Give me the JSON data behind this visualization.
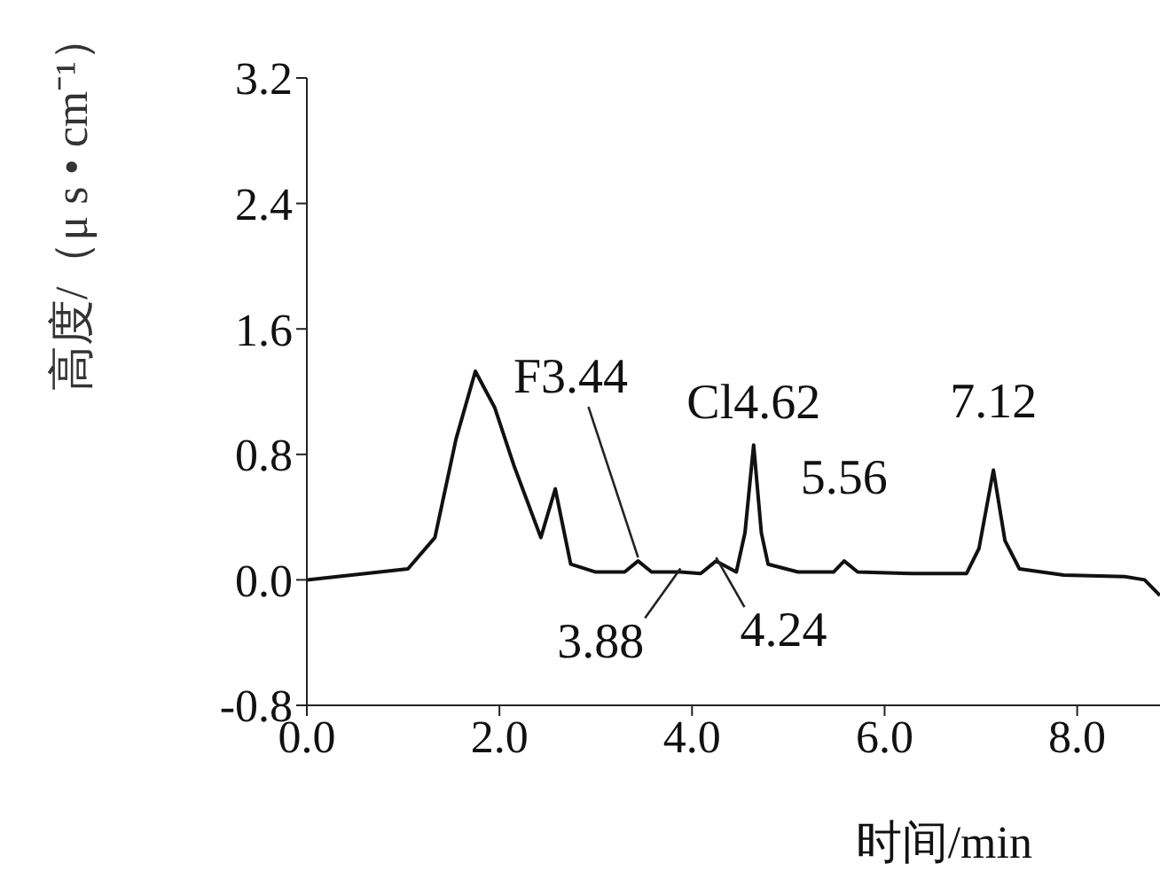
{
  "chart_data": {
    "type": "line",
    "xlabel": "时间/min",
    "ylabel": "高度/（μ s • cm⁻¹）",
    "x": [
      0,
      1.05,
      1.33,
      1.55,
      1.75,
      1.95,
      2.15,
      2.43,
      2.58,
      2.74,
      3.0,
      3.3,
      3.44,
      3.58,
      3.88,
      4.09,
      4.25,
      4.46,
      4.55,
      4.64,
      4.72,
      4.79,
      5.1,
      5.47,
      5.58,
      5.72,
      6.3,
      6.85,
      6.98,
      7.13,
      7.25,
      7.4,
      7.86,
      8.5,
      8.7,
      8.86
    ],
    "series": [
      {
        "color": "#111111",
        "values": [
          0,
          0.07,
          0.27,
          0.9,
          1.33,
          1.1,
          0.73,
          0.27,
          0.58,
          0.1,
          0.05,
          0.05,
          0.12,
          0.05,
          0.05,
          0.04,
          0.12,
          0.05,
          0.3,
          0.86,
          0.3,
          0.1,
          0.05,
          0.05,
          0.12,
          0.05,
          0.04,
          0.04,
          0.2,
          0.7,
          0.25,
          0.07,
          0.03,
          0.02,
          0,
          -0.1
        ]
      }
    ],
    "annotations": [
      {
        "text": "F3.44",
        "x": 3.44,
        "y": 0.12
      },
      {
        "text": "3.88",
        "x": 3.88,
        "y": 0.05
      },
      {
        "text": "4.24",
        "x": 4.25,
        "y": 0.12
      },
      {
        "text": "Cl4.62",
        "x": 4.64,
        "y": 0.86
      },
      {
        "text": "5.56",
        "x": 5.58,
        "y": 0.12
      },
      {
        "text": "7.12",
        "x": 7.13,
        "y": 0.7
      }
    ],
    "xlim": [
      0,
      8.86
    ],
    "xticks": [
      {
        "value": 0,
        "label": "0.0"
      },
      {
        "value": 2,
        "label": "2.0"
      },
      {
        "value": 4,
        "label": "4.0"
      },
      {
        "value": 6,
        "label": "6.0"
      },
      {
        "value": 8,
        "label": "8.0"
      }
    ],
    "ylim": [
      -0.8,
      3.2
    ],
    "yticks": [
      {
        "value": -0.8,
        "label": "-0.8"
      },
      {
        "value": 0,
        "label": "0.0"
      },
      {
        "value": 0.8,
        "label": "0.8"
      },
      {
        "value": 1.6,
        "label": "1.6"
      },
      {
        "value": 2.4,
        "label": "2.4"
      },
      {
        "value": 3.2,
        "label": "3.2"
      }
    ],
    "grid": false,
    "legend": false,
    "marker": "none",
    "line_style": "solid"
  }
}
